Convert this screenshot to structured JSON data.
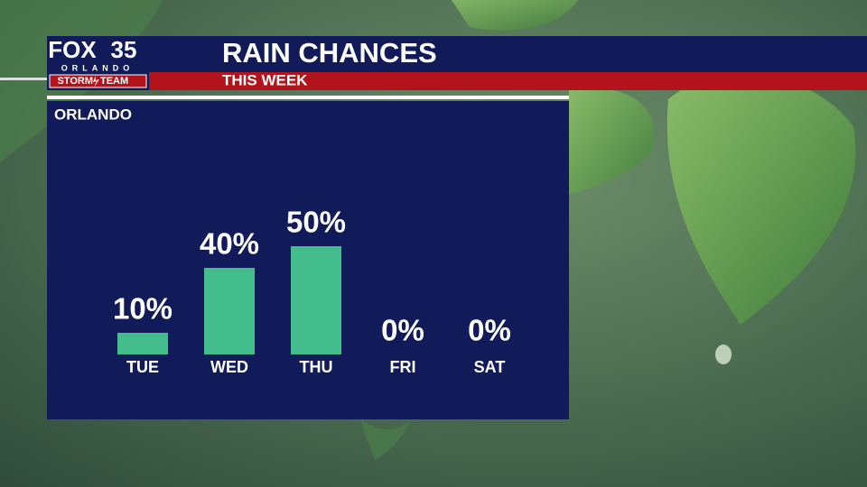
{
  "header": {
    "logo_brand": "FOX",
    "logo_number": "35",
    "logo_city": "ORLANDO",
    "logo_team_left": "STORM",
    "logo_team_right": "TEAM"
  },
  "chart_data": {
    "type": "bar",
    "title": "RAIN CHANCES",
    "subtitle": "THIS WEEK",
    "location": "ORLANDO",
    "categories": [
      "TUE",
      "WED",
      "THU",
      "FRI",
      "SAT"
    ],
    "values": [
      10,
      40,
      50,
      0,
      0
    ],
    "value_labels": [
      "10%",
      "40%",
      "50%",
      "0%",
      "0%"
    ],
    "color": "#43bd8c"
  }
}
